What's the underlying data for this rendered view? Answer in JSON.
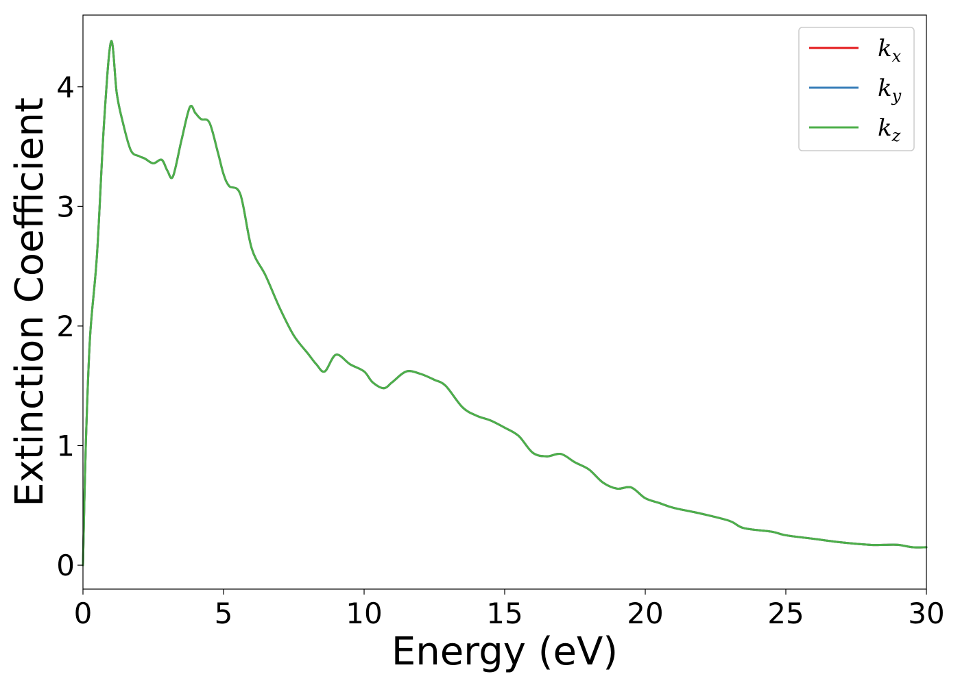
{
  "chart_data": {
    "type": "line",
    "title": "",
    "xlabel": "Energy (eV)",
    "ylabel": "Extinction Coefficient",
    "xlim": [
      0,
      30
    ],
    "ylim": [
      -0.2,
      4.6
    ],
    "xticks": [
      0,
      5,
      10,
      15,
      20,
      25,
      30
    ],
    "yticks": [
      0,
      1,
      2,
      3,
      4
    ],
    "grid": false,
    "legend_position": "top-right",
    "x": [
      0,
      0.1,
      0.25,
      0.5,
      0.75,
      1.0,
      1.2,
      1.4,
      1.7,
      2.0,
      2.2,
      2.5,
      2.8,
      3.0,
      3.2,
      3.5,
      3.8,
      4.0,
      4.2,
      4.5,
      4.8,
      5.0,
      5.2,
      5.6,
      6.0,
      6.5,
      7.0,
      7.5,
      8.0,
      8.3,
      8.6,
      9.0,
      9.5,
      10.0,
      10.3,
      10.7,
      11.0,
      11.5,
      12.0,
      12.5,
      12.9,
      13.5,
      14.0,
      14.5,
      15.0,
      15.5,
      16.0,
      16.5,
      17.0,
      17.5,
      18.0,
      18.5,
      19.0,
      19.5,
      20.0,
      20.5,
      21.0,
      22.0,
      23.0,
      23.5,
      24.5,
      25.0,
      26.0,
      27.0,
      28.0,
      28.5,
      29.0,
      29.5,
      30.0
    ],
    "series": [
      {
        "name": "k_x",
        "label_base": "k",
        "label_sub": "x",
        "color": "#e41a1c",
        "values": [
          0.0,
          1.0,
          1.9,
          2.6,
          3.7,
          4.38,
          3.95,
          3.72,
          3.47,
          3.42,
          3.4,
          3.36,
          3.39,
          3.3,
          3.25,
          3.55,
          3.83,
          3.78,
          3.73,
          3.7,
          3.45,
          3.27,
          3.17,
          3.1,
          2.65,
          2.42,
          2.15,
          1.92,
          1.77,
          1.68,
          1.62,
          1.76,
          1.68,
          1.62,
          1.53,
          1.48,
          1.53,
          1.62,
          1.6,
          1.55,
          1.5,
          1.32,
          1.25,
          1.21,
          1.15,
          1.08,
          0.94,
          0.91,
          0.93,
          0.86,
          0.8,
          0.69,
          0.64,
          0.65,
          0.56,
          0.52,
          0.48,
          0.43,
          0.37,
          0.31,
          0.28,
          0.25,
          0.22,
          0.19,
          0.17,
          0.17,
          0.17,
          0.15,
          0.15
        ]
      },
      {
        "name": "k_y",
        "label_base": "k",
        "label_sub": "y",
        "color": "#377eb8",
        "values": [
          0.0,
          1.0,
          1.9,
          2.6,
          3.7,
          4.38,
          3.95,
          3.72,
          3.47,
          3.42,
          3.4,
          3.36,
          3.39,
          3.3,
          3.25,
          3.55,
          3.83,
          3.78,
          3.73,
          3.7,
          3.45,
          3.27,
          3.17,
          3.1,
          2.65,
          2.42,
          2.15,
          1.92,
          1.77,
          1.68,
          1.62,
          1.76,
          1.68,
          1.62,
          1.53,
          1.48,
          1.53,
          1.62,
          1.6,
          1.55,
          1.5,
          1.32,
          1.25,
          1.21,
          1.15,
          1.08,
          0.94,
          0.91,
          0.93,
          0.86,
          0.8,
          0.69,
          0.64,
          0.65,
          0.56,
          0.52,
          0.48,
          0.43,
          0.37,
          0.31,
          0.28,
          0.25,
          0.22,
          0.19,
          0.17,
          0.17,
          0.17,
          0.15,
          0.15
        ]
      },
      {
        "name": "k_z",
        "label_base": "k",
        "label_sub": "z",
        "color": "#4daf4a",
        "values": [
          0.0,
          1.0,
          1.9,
          2.6,
          3.7,
          4.38,
          3.95,
          3.72,
          3.47,
          3.42,
          3.4,
          3.36,
          3.39,
          3.3,
          3.25,
          3.55,
          3.83,
          3.78,
          3.73,
          3.7,
          3.45,
          3.27,
          3.17,
          3.1,
          2.65,
          2.42,
          2.15,
          1.92,
          1.77,
          1.68,
          1.62,
          1.76,
          1.68,
          1.62,
          1.53,
          1.48,
          1.53,
          1.62,
          1.6,
          1.55,
          1.5,
          1.32,
          1.25,
          1.21,
          1.15,
          1.08,
          0.94,
          0.91,
          0.93,
          0.86,
          0.8,
          0.69,
          0.64,
          0.65,
          0.56,
          0.52,
          0.48,
          0.43,
          0.37,
          0.31,
          0.28,
          0.25,
          0.22,
          0.19,
          0.17,
          0.17,
          0.17,
          0.15,
          0.15
        ]
      }
    ]
  }
}
